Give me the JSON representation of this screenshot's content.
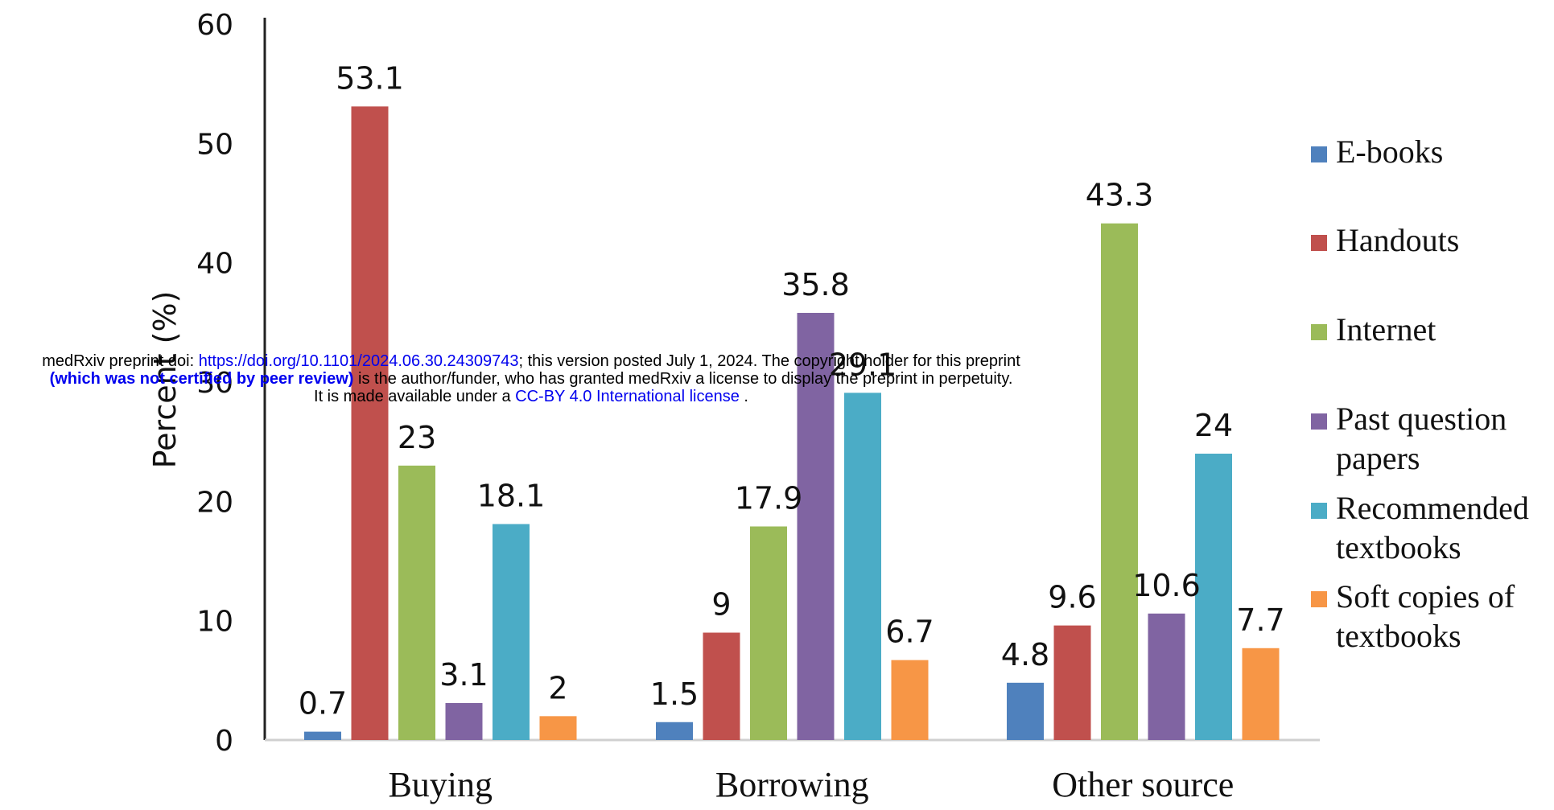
{
  "chart_data": {
    "type": "bar",
    "ylabel": "Percent (%)",
    "ylim": [
      0,
      60
    ],
    "yticks": [
      0,
      10,
      20,
      30,
      40,
      50,
      60
    ],
    "categories": [
      "Buying",
      "Borrowing",
      "Other source"
    ],
    "series": [
      {
        "name": "E-books",
        "color": "#4f81bd",
        "values": [
          0.7,
          1.5,
          4.8
        ],
        "labels": [
          "0.7",
          "1.5",
          "4.8"
        ]
      },
      {
        "name": "Handouts",
        "color": "#c0504d",
        "values": [
          53.1,
          9,
          9.6
        ],
        "labels": [
          "53.1",
          "9",
          "9.6"
        ]
      },
      {
        "name": "Internet",
        "color": "#9bbb59",
        "values": [
          23,
          17.9,
          43.3
        ],
        "labels": [
          "23",
          "17.9",
          "43.3"
        ]
      },
      {
        "name": "Past question papers",
        "color": "#8064a2",
        "values": [
          3.1,
          35.8,
          10.6
        ],
        "labels": [
          "3.1",
          "35.8",
          "10.6"
        ]
      },
      {
        "name": "Recommended textbooks",
        "color": "#4bacc6",
        "values": [
          18.1,
          29.1,
          24
        ],
        "labels": [
          "18.1",
          "29.1",
          "24"
        ]
      },
      {
        "name": "Soft copies of textbooks",
        "color": "#f79646",
        "values": [
          2,
          6.7,
          7.7
        ],
        "labels": [
          "2",
          "6.7",
          "7.7"
        ]
      }
    ],
    "legend_lines": [
      [
        "E-books"
      ],
      [
        "Handouts"
      ],
      [
        "Internet"
      ],
      [
        "Past question",
        "papers"
      ],
      [
        "Recommended",
        "textbooks"
      ],
      [
        "Soft copies of",
        "textbooks"
      ]
    ],
    "legend_position": "right",
    "grid": false
  },
  "watermark": {
    "line1_a": "medRxiv preprint doi: ",
    "line1_link": "https://doi.org/10.1101/2024.06.30.24309743",
    "line1_b": "; this version posted July 1, 2024. The copyright holder for this preprint",
    "line2_bold": "(which was not certified by peer review)",
    "line2_b": " is the author/funder, who has granted medRxiv a license to display the preprint in perpetuity.",
    "line3_a": "It is made available under a ",
    "line3_link": "CC-BY 4.0 International license",
    "line3_b": " ."
  }
}
